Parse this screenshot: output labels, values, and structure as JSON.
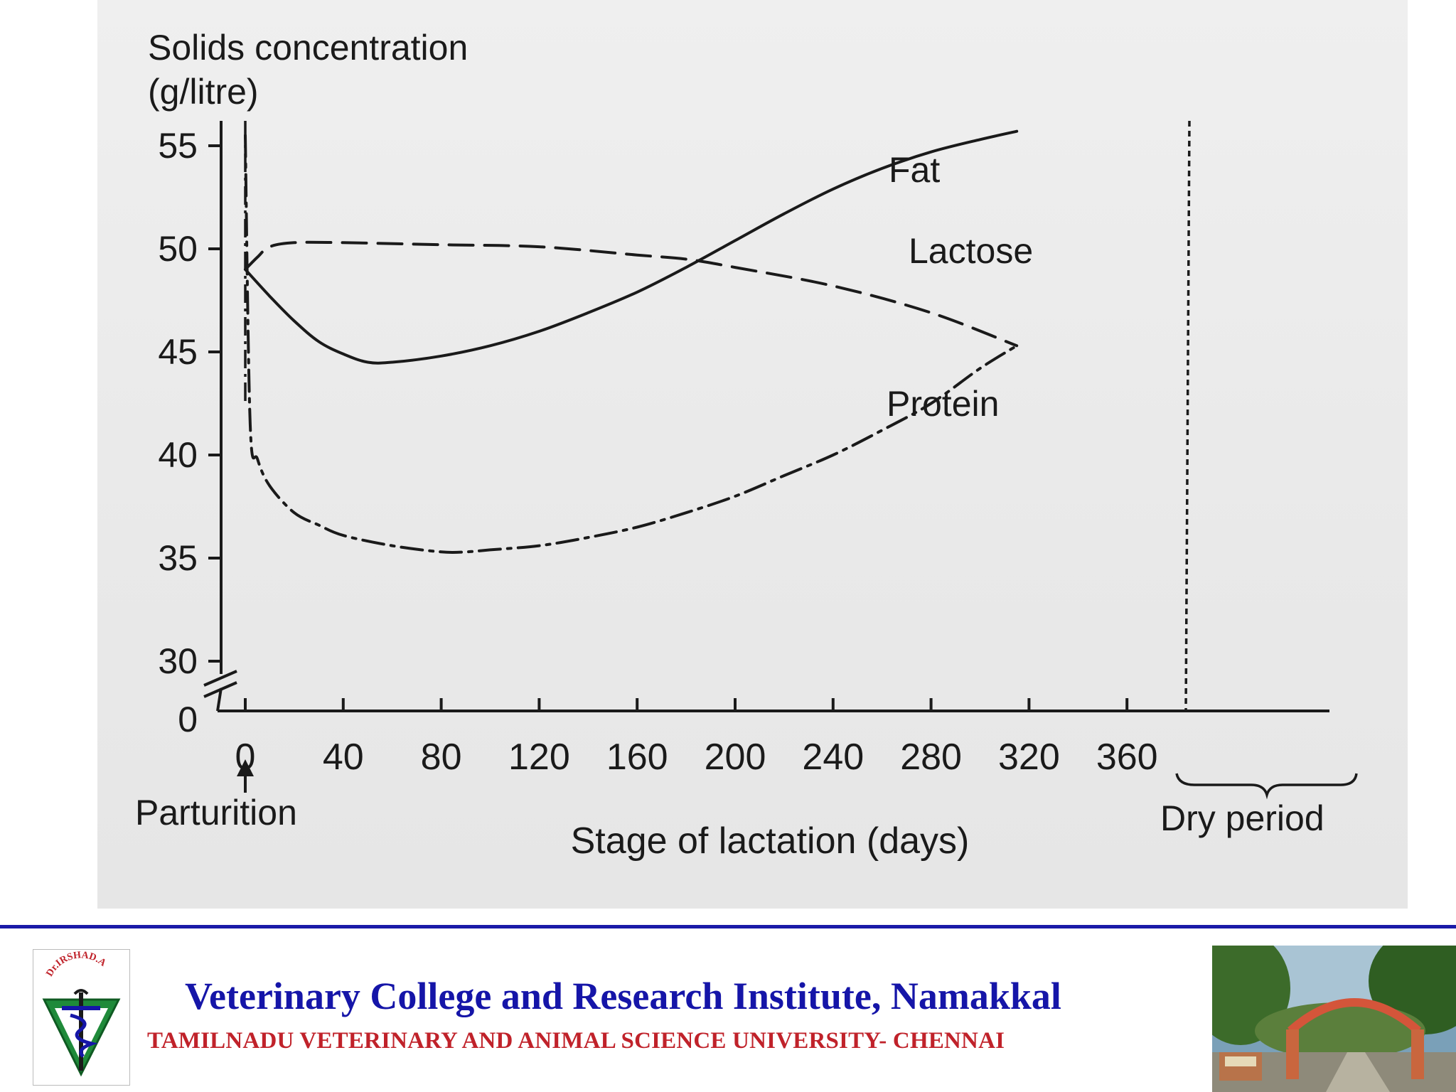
{
  "chart_data": {
    "type": "line",
    "ylabel_line1": "Solids concentration",
    "ylabel_line2": "(g/litre)",
    "xlabel": "Stage of lactation (days)",
    "y_ticks": [
      "55",
      "50",
      "45",
      "40",
      "35",
      "30",
      "0"
    ],
    "x_ticks": [
      "0",
      "40",
      "80",
      "120",
      "160",
      "200",
      "240",
      "280",
      "320",
      "360"
    ],
    "xlim": [
      0,
      360
    ],
    "ylim": [
      30,
      55
    ],
    "y_axis_break": true,
    "annotations": {
      "parturition": "Parturition",
      "dry_period": "Dry period"
    },
    "series": [
      {
        "name": "Fat",
        "style": "solid",
        "x": [
          0,
          10,
          20,
          30,
          40,
          50,
          60,
          80,
          100,
          120,
          140,
          160,
          180,
          200,
          220,
          240,
          260,
          280,
          300,
          315
        ],
        "y": [
          49,
          47.7,
          46.5,
          45.5,
          44.9,
          44.5,
          44.5,
          44.8,
          45.3,
          46.0,
          46.9,
          47.9,
          49.1,
          50.4,
          51.7,
          52.9,
          53.9,
          54.7,
          55.3,
          55.7
        ]
      },
      {
        "name": "Lactose",
        "style": "dashed",
        "x": [
          0,
          5,
          10,
          20,
          40,
          80,
          120,
          160,
          180,
          200,
          240,
          280,
          315
        ],
        "y": [
          49,
          49.6,
          50.1,
          50.3,
          50.3,
          50.2,
          50.1,
          49.7,
          49.5,
          49.1,
          48.2,
          46.9,
          45.3
        ]
      },
      {
        "name": "Protein",
        "style": "dash-dot",
        "x": [
          0,
          2,
          5,
          10,
          20,
          30,
          40,
          60,
          80,
          90,
          100,
          120,
          140,
          160,
          180,
          200,
          220,
          240,
          260,
          280,
          300,
          315
        ],
        "y": [
          55.5,
          41.5,
          39.8,
          38.5,
          37.2,
          36.6,
          36.1,
          35.6,
          35.3,
          35.3,
          35.4,
          35.6,
          36.0,
          36.5,
          37.2,
          38.0,
          39.0,
          40.0,
          41.2,
          42.5,
          44.2,
          45.3
        ]
      }
    ],
    "line_color": "#1a1a1a"
  },
  "footer": {
    "institution": "Veterinary College and Research Institute, Namakkal",
    "university": "TAMILNADU VETERINARY AND ANIMAL SCIENCE UNIVERSITY- CHENNAI",
    "logo_text": "Dr.IRSHAD.A",
    "institution_color": "#1515a8",
    "university_color": "#c0222a",
    "rule_color": "#1a1aa8"
  }
}
